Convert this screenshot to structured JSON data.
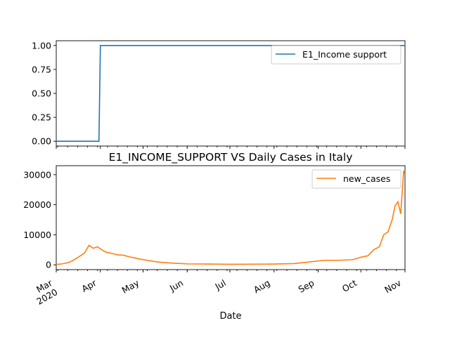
{
  "chart_data": [
    {
      "type": "line",
      "title": "",
      "xlabel": "",
      "ylabel": "",
      "xlim": [
        "2020-03-01",
        "2020-11-01"
      ],
      "ylim": [
        -0.05,
        1.05
      ],
      "yticks": [
        0.0,
        0.25,
        0.5,
        0.75,
        1.0
      ],
      "ytick_labels": [
        "0.00",
        "0.25",
        "0.50",
        "0.75",
        "1.00"
      ],
      "legend": {
        "position": "upper right"
      },
      "series": [
        {
          "name": "E1_Income support",
          "color": "#1f77b4",
          "x": [
            "2020-03-01",
            "2020-03-31",
            "2020-04-01",
            "2020-11-01"
          ],
          "values": [
            0,
            0,
            1,
            1
          ]
        }
      ]
    },
    {
      "type": "line",
      "title": "E1_INCOME_SUPPORT VS Daily Cases in Italy",
      "xlabel": "Date",
      "ylabel": "",
      "xlim": [
        "2020-03-01",
        "2020-11-01"
      ],
      "ylim": [
        -1600,
        33000
      ],
      "yticks": [
        0,
        10000,
        20000,
        30000
      ],
      "ytick_labels": [
        "0",
        "10000",
        "20000",
        "30000"
      ],
      "xticks": [
        "2020-03-01",
        "2020-04-01",
        "2020-05-01",
        "2020-06-01",
        "2020-07-01",
        "2020-08-01",
        "2020-09-01",
        "2020-10-01",
        "2020-11-01"
      ],
      "xtick_labels": [
        "Mar\n2020",
        "Apr",
        "May",
        "Jun",
        "Jul",
        "Aug",
        "Sep",
        "Oct",
        "Nov"
      ],
      "legend": {
        "position": "upper right"
      },
      "series": [
        {
          "name": "new_cases",
          "color": "#ff7f0e",
          "x": [
            "2020-03-01",
            "2020-03-05",
            "2020-03-10",
            "2020-03-14",
            "2020-03-18",
            "2020-03-21",
            "2020-03-24",
            "2020-03-27",
            "2020-03-30",
            "2020-04-02",
            "2020-04-05",
            "2020-04-09",
            "2020-04-13",
            "2020-04-17",
            "2020-04-21",
            "2020-04-25",
            "2020-04-29",
            "2020-05-05",
            "2020-05-12",
            "2020-05-20",
            "2020-06-01",
            "2020-06-15",
            "2020-07-01",
            "2020-07-15",
            "2020-08-01",
            "2020-08-15",
            "2020-08-25",
            "2020-09-05",
            "2020-09-15",
            "2020-09-25",
            "2020-10-01",
            "2020-10-06",
            "2020-10-10",
            "2020-10-14",
            "2020-10-17",
            "2020-10-20",
            "2020-10-23",
            "2020-10-25",
            "2020-10-27",
            "2020-10-29",
            "2020-10-31",
            "2020-11-01"
          ],
          "values": [
            100,
            300,
            800,
            1800,
            3000,
            4000,
            6500,
            5500,
            6000,
            5000,
            4200,
            3800,
            3300,
            3200,
            2700,
            2300,
            1900,
            1400,
            900,
            600,
            300,
            250,
            180,
            200,
            250,
            400,
            900,
            1500,
            1500,
            1700,
            2500,
            3000,
            5000,
            6000,
            10000,
            10900,
            15000,
            19600,
            21000,
            17000,
            31000,
            30000
          ]
        }
      ]
    }
  ]
}
